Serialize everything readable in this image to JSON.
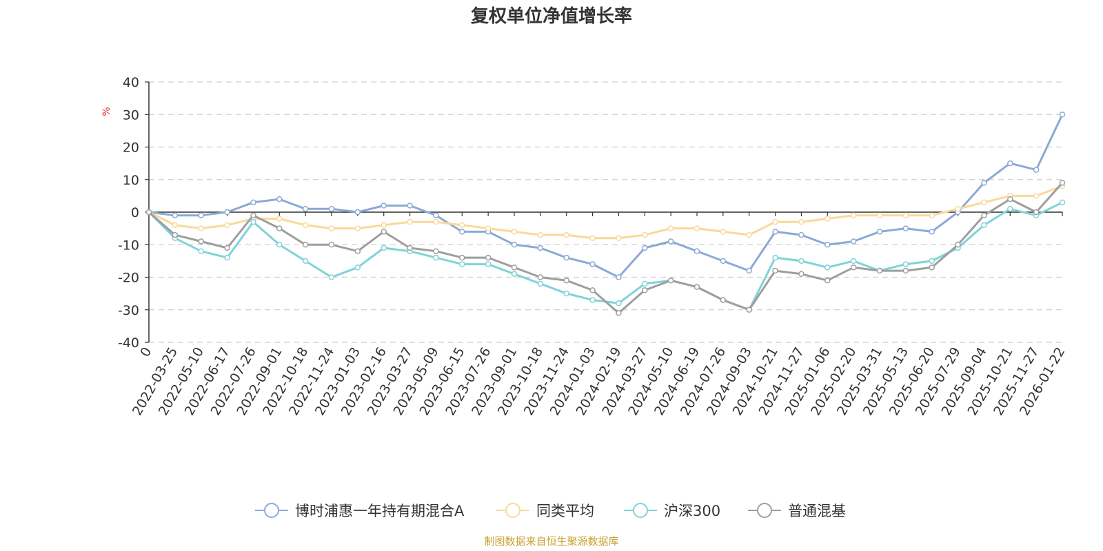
{
  "chart_data": {
    "type": "line",
    "title": "复权单位净值增长率",
    "ylabel": "%",
    "ylim": [
      -40,
      40
    ],
    "yticks": [
      40,
      30,
      20,
      10,
      0,
      -10,
      -20,
      -30,
      -40
    ],
    "categories": [
      "0",
      "2022-03-25",
      "2022-05-10",
      "2022-06-17",
      "2022-07-26",
      "2022-09-01",
      "2022-10-18",
      "2022-11-24",
      "2023-01-03",
      "2023-02-16",
      "2023-03-27",
      "2023-05-09",
      "2023-06-15",
      "2023-07-26",
      "2023-09-01",
      "2023-10-18",
      "2023-11-24",
      "2024-01-03",
      "2024-02-19",
      "2024-03-27",
      "2024-05-10",
      "2024-06-19",
      "2024-07-26",
      "2024-09-03",
      "2024-10-21",
      "2024-11-27",
      "2025-01-06",
      "2025-02-20",
      "2025-03-31",
      "2025-05-13",
      "2025-06-20",
      "2025-07-29",
      "2025-09-04",
      "2025-10-21",
      "2025-11-27",
      "2026-01-22"
    ],
    "grid": true,
    "legend_position": "bottom",
    "source": "制图数据来自恒生聚源数据库",
    "series": [
      {
        "name": "博时浦惠一年持有期混合A",
        "color": "#8ba9d6",
        "values": [
          0,
          -1,
          -1,
          0,
          3,
          4,
          1,
          1,
          0,
          2,
          2,
          -1,
          -6,
          -6,
          -10,
          -11,
          -14,
          -16,
          -20,
          -11,
          -9,
          -12,
          -15,
          -18,
          -6,
          -7,
          -10,
          -9,
          -6,
          -5,
          -6,
          0,
          9,
          15,
          13,
          30
        ]
      },
      {
        "name": "同类平均",
        "color": "#f9d999",
        "values": [
          0,
          -4,
          -5,
          -4,
          -2,
          -2,
          -4,
          -5,
          -5,
          -4,
          -3,
          -3,
          -4,
          -5,
          -6,
          -7,
          -7,
          -8,
          -8,
          -7,
          -5,
          -5,
          -6,
          -7,
          -3,
          -3,
          -2,
          -1,
          -1,
          -1,
          -1,
          1,
          3,
          5,
          5,
          8
        ]
      },
      {
        "name": "沪深300",
        "color": "#7fd3d8",
        "values": [
          0,
          -8,
          -12,
          -14,
          -3,
          -10,
          -15,
          -20,
          -17,
          -11,
          -12,
          -14,
          -16,
          -16,
          -19,
          -22,
          -25,
          -27,
          -28,
          -22,
          -21,
          -23,
          -27,
          -30,
          -14,
          -15,
          -17,
          -15,
          -18,
          -16,
          -15,
          -11,
          -4,
          1,
          -1,
          3
        ]
      },
      {
        "name": "普通混基",
        "color": "#9e9e9e",
        "values": [
          0,
          -7,
          -9,
          -11,
          -1,
          -5,
          -10,
          -10,
          -12,
          -6,
          -11,
          -12,
          -14,
          -14,
          -17,
          -20,
          -21,
          -24,
          -31,
          -24,
          -21,
          -23,
          -27,
          -30,
          -18,
          -19,
          -21,
          -17,
          -18,
          -18,
          -17,
          -10,
          -1,
          4,
          0,
          9
        ]
      }
    ]
  }
}
